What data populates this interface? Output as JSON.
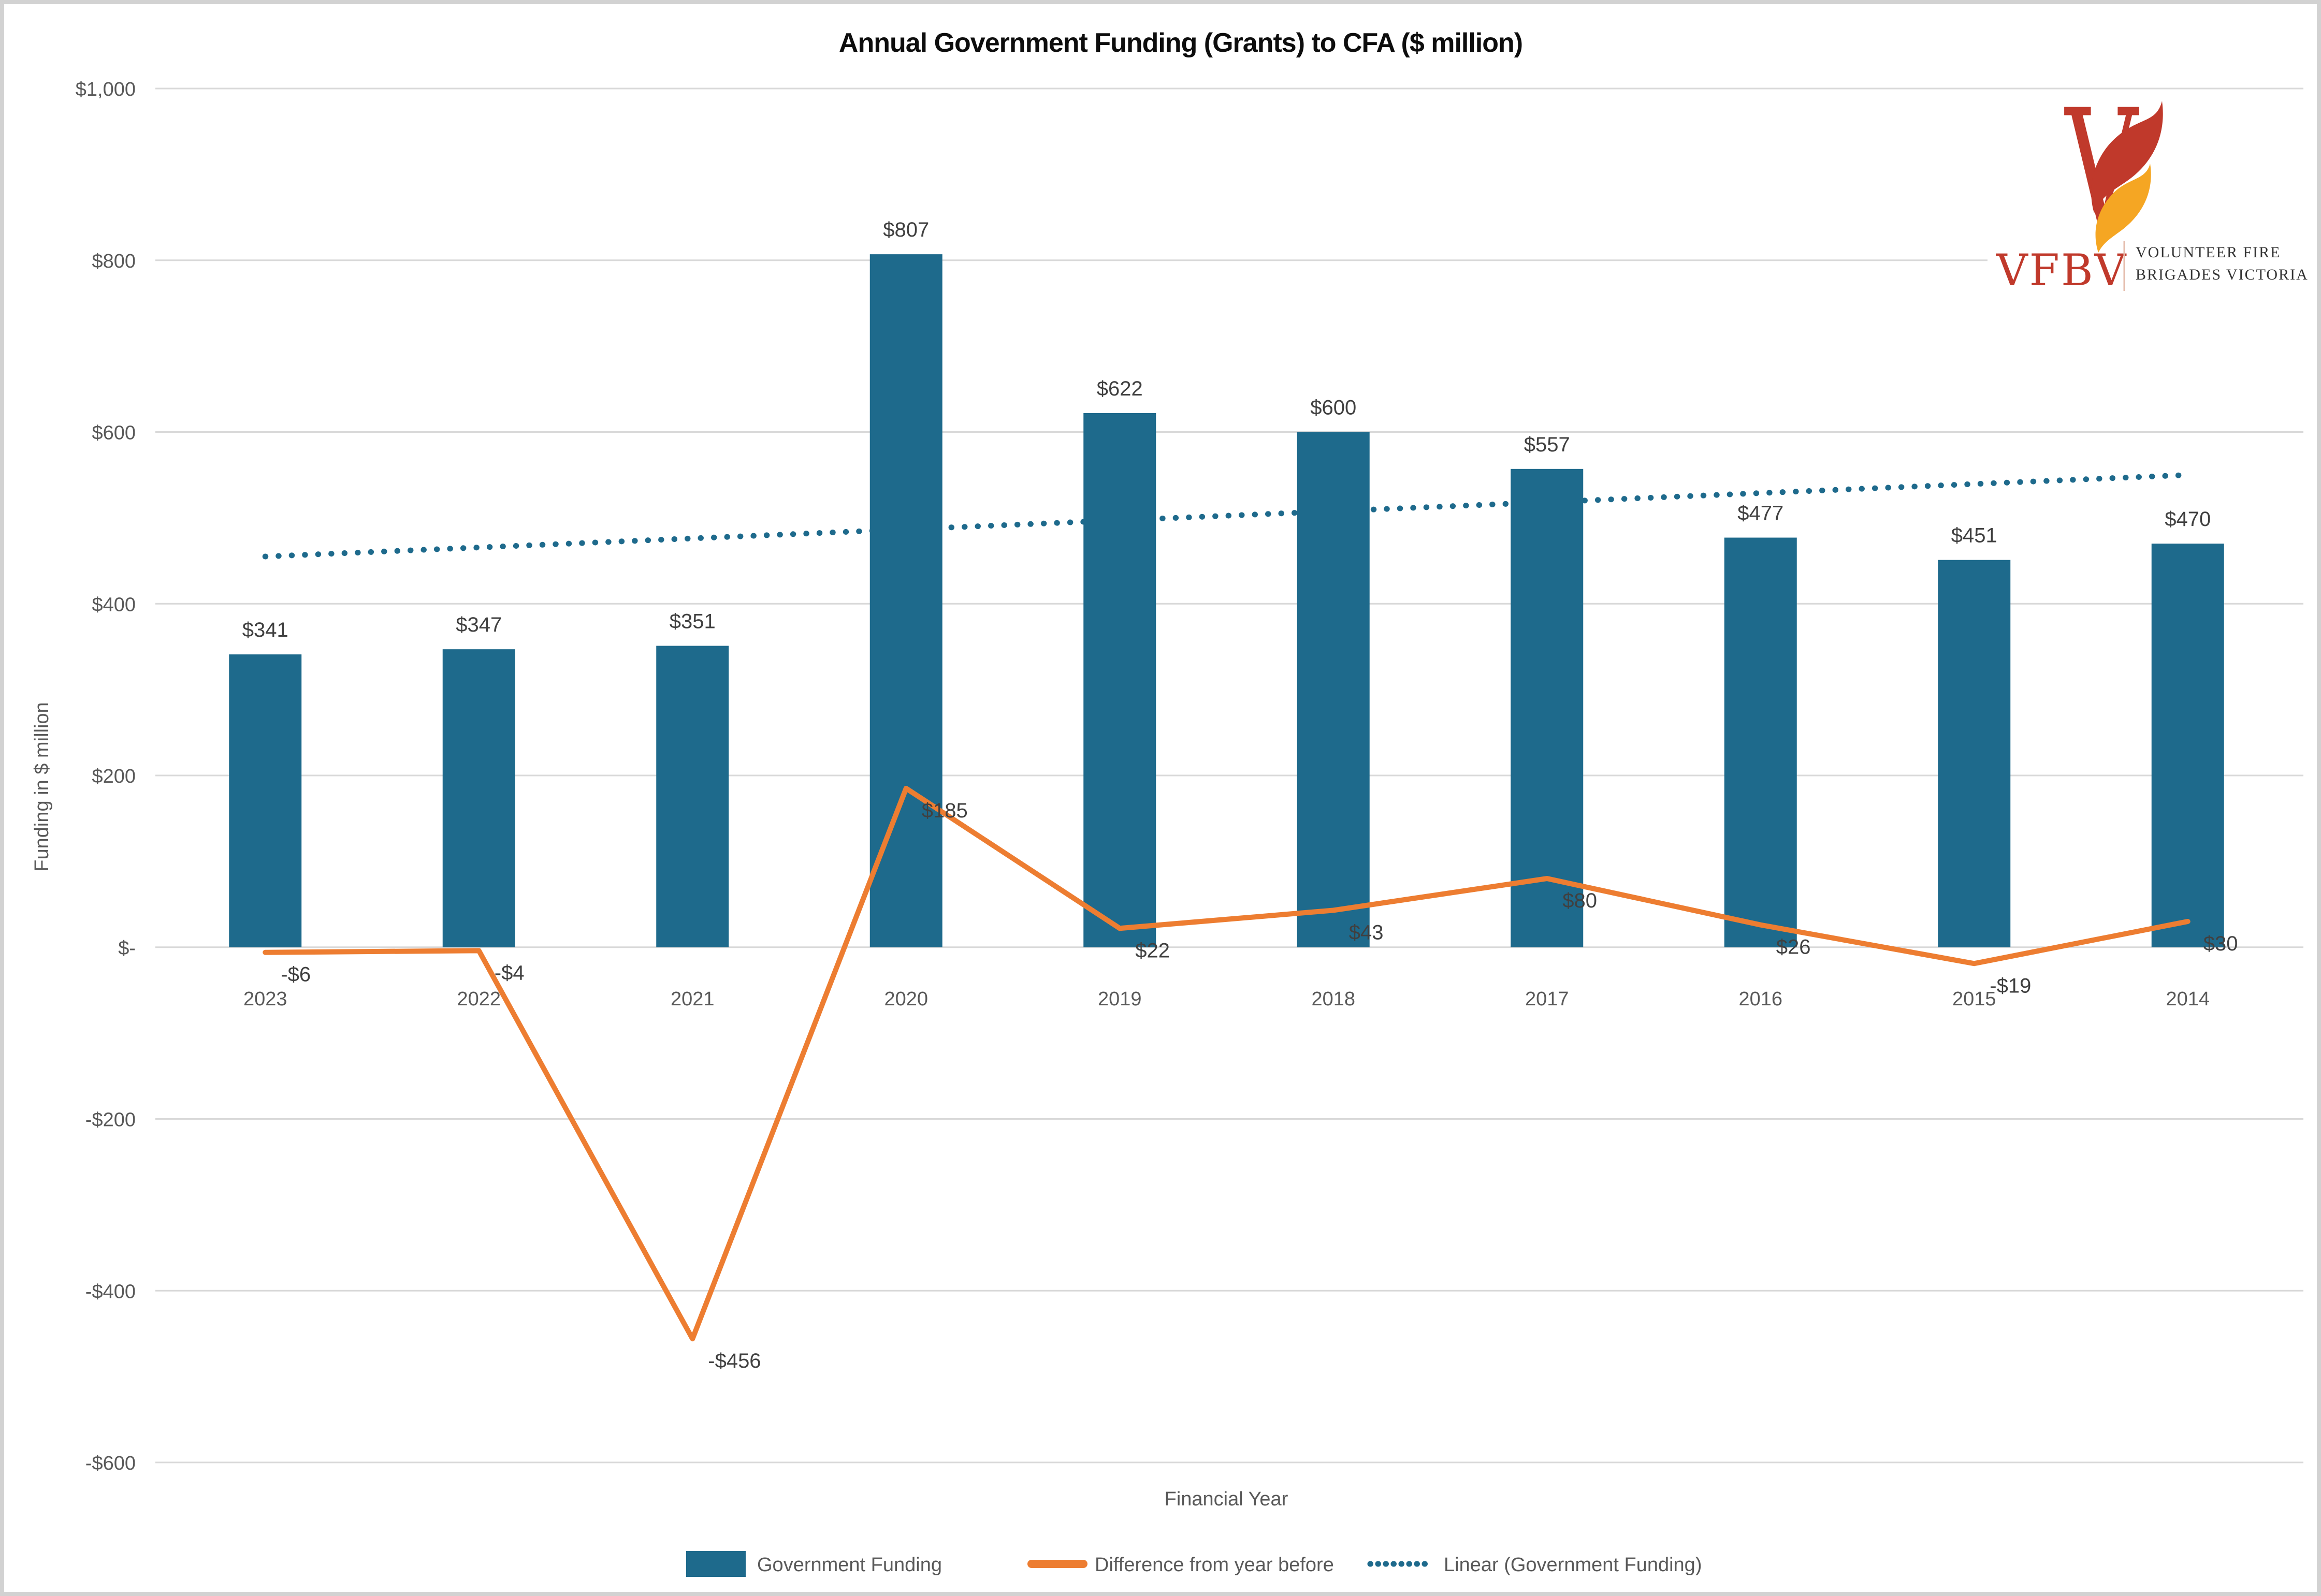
{
  "title": "Annual Government Funding (Grants) to CFA ($ million)",
  "logo": {
    "mark": "V",
    "acronym": "VFBV",
    "org_line1": "VOLUNTEER FIRE",
    "org_line2": "BRIGADES VICTORIA"
  },
  "axes": {
    "y_title": "Funding in $ million",
    "x_title": "Financial Year"
  },
  "legend": {
    "items": [
      {
        "label": "Government Funding",
        "swatch": "bar"
      },
      {
        "label": "Difference from year before",
        "swatch": "line"
      },
      {
        "label": "Linear (Government Funding)",
        "swatch": "dotted"
      }
    ]
  },
  "colors": {
    "bar": "#1E6A8C",
    "line": "#ED7D31",
    "trend": "#1E6A8C",
    "grid": "#D9D9D9",
    "data_label": "#404040",
    "axis_label": "#595959",
    "title": "#0D0D0D",
    "logo_red": "#C0392B",
    "logo_flame_red": "#C0392B",
    "logo_flame_orange": "#F5A623",
    "logo_dark_text": "#333333",
    "logo_divider": "#E5BCAC",
    "frame": "#D2D2D2"
  },
  "chart_data": {
    "type": "bar",
    "title": "Annual Government Funding (Grants) to CFA ($ million)",
    "xlabel": "Financial Year",
    "ylabel": "Funding in $ million",
    "ylim": [
      -600,
      1000
    ],
    "grid": "horizontal",
    "legend_position": "bottom",
    "categories": [
      "2023",
      "2022",
      "2021",
      "2020",
      "2019",
      "2018",
      "2017",
      "2016",
      "2015",
      "2014"
    ],
    "y_ticks": [
      {
        "label": "$1,000",
        "value": 1000
      },
      {
        "label": "$800",
        "value": 800
      },
      {
        "label": "$600",
        "value": 600
      },
      {
        "label": "$400",
        "value": 400
      },
      {
        "label": "$200",
        "value": 200
      },
      {
        "label": "$-",
        "value": 0
      },
      {
        "label": "-$200",
        "value": -200
      },
      {
        "label": "-$400",
        "value": -400
      },
      {
        "label": "-$600",
        "value": -600
      }
    ],
    "series": [
      {
        "name": "Government Funding",
        "type": "bar",
        "values": [
          341,
          347,
          351,
          807,
          622,
          600,
          557,
          477,
          451,
          470
        ],
        "labels": [
          "$341",
          "$347",
          "$351",
          "$807",
          "$622",
          "$600",
          "$557",
          "$477",
          "$451",
          "$470"
        ]
      },
      {
        "name": "Difference from year before",
        "type": "line",
        "values": [
          -6,
          -4,
          -456,
          185,
          22,
          43,
          80,
          26,
          -19,
          30
        ],
        "labels": [
          "-$6",
          "-$4",
          "-$456",
          "$185",
          "$22",
          "$43",
          "$80",
          "$26",
          "-$19",
          "$30"
        ]
      },
      {
        "name": "Linear (Government Funding)",
        "type": "trendline",
        "endpoint_values": [
          455,
          550
        ]
      }
    ]
  }
}
